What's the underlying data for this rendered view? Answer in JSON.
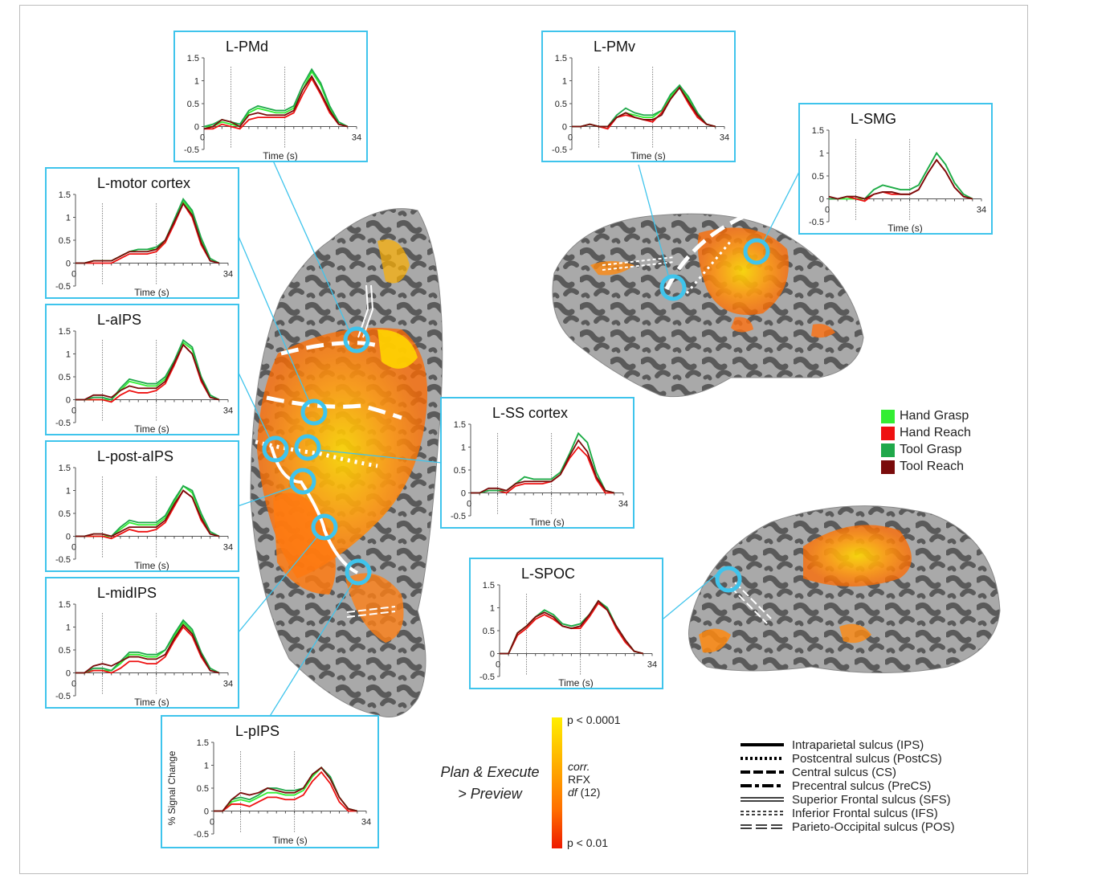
{
  "legend": [
    {
      "label": "Hand Grasp",
      "color": "#33ee33"
    },
    {
      "label": "Hand Reach",
      "color": "#ee1111"
    },
    {
      "label": "Tool Grasp",
      "color": "#1fa84a"
    },
    {
      "label": "Tool Reach",
      "color": "#7a0b0b"
    }
  ],
  "sulci": [
    {
      "label": "Intraparietal sulcus (IPS)",
      "style": "solid"
    },
    {
      "label": "Postcentral sulcus (PostCS)",
      "style": "dotted"
    },
    {
      "label": "Central sulcus (CS)",
      "style": "dashed"
    },
    {
      "label": "Precentral sulcus (PreCS)",
      "style": "dashdot"
    },
    {
      "label": "Superior Frontal sulcus (SFS)",
      "style": "double"
    },
    {
      "label": "Inferior Frontal sulcus (IFS)",
      "style": "double-dotted"
    },
    {
      "label": "Parieto-Occipital sulcus (POS)",
      "style": "double-dashed"
    }
  ],
  "colorbar": {
    "top_label": "p < 0.0001",
    "bottom_label": "p < 0.01",
    "stat_line1": "corr.",
    "stat_line2": "RFX",
    "stat_line3_italic": "df",
    "stat_line3_rest": " (12)",
    "colors": [
      "#ffee00",
      "#ffb000",
      "#ff7000",
      "#ee1a00"
    ]
  },
  "contrast_label": {
    "line1": "Plan & Execute",
    "line2": "> Preview"
  },
  "shared_axes": {
    "xlabel": "Time (s)",
    "ylabel": "% Signal Change",
    "yticks": [
      "1.5",
      "1",
      "0.5",
      "0",
      "-0.5"
    ],
    "xtick_start": "0",
    "xtick_end": "34",
    "ylim": [
      -0.5,
      1.5
    ],
    "xlim": [
      0,
      34
    ],
    "event_lines_x": [
      6,
      18
    ]
  },
  "chart_data": [
    {
      "type": "line",
      "title": "L-PMd",
      "x": [
        0,
        2,
        4,
        6,
        8,
        10,
        12,
        14,
        16,
        18,
        20,
        22,
        24,
        26,
        28,
        30,
        32
      ],
      "series": [
        {
          "name": "Hand Grasp",
          "values": [
            0.0,
            0.0,
            0.1,
            0.05,
            0.0,
            0.3,
            0.4,
            0.35,
            0.3,
            0.3,
            0.4,
            0.8,
            1.2,
            0.9,
            0.4,
            0.1,
            0.0
          ]
        },
        {
          "name": "Hand Reach",
          "values": [
            -0.05,
            -0.05,
            0.05,
            0.0,
            -0.05,
            0.15,
            0.2,
            0.2,
            0.2,
            0.2,
            0.3,
            0.7,
            1.05,
            0.7,
            0.3,
            0.05,
            0.0
          ]
        },
        {
          "name": "Tool Grasp",
          "values": [
            0.0,
            0.05,
            0.15,
            0.1,
            0.05,
            0.35,
            0.45,
            0.4,
            0.35,
            0.35,
            0.45,
            0.9,
            1.25,
            0.95,
            0.45,
            0.1,
            0.0
          ]
        },
        {
          "name": "Tool Reach",
          "values": [
            -0.05,
            0.0,
            0.15,
            0.1,
            0.0,
            0.25,
            0.3,
            0.25,
            0.25,
            0.25,
            0.35,
            0.8,
            1.1,
            0.75,
            0.35,
            0.05,
            0.0
          ]
        }
      ]
    },
    {
      "type": "line",
      "title": "L-PMv",
      "x": [
        0,
        2,
        4,
        6,
        8,
        10,
        12,
        14,
        16,
        18,
        20,
        22,
        24,
        26,
        28,
        30,
        32
      ],
      "series": [
        {
          "name": "Hand Grasp",
          "values": [
            0.0,
            0.0,
            0.05,
            0.0,
            0.0,
            0.2,
            0.3,
            0.25,
            0.2,
            0.2,
            0.35,
            0.65,
            0.9,
            0.6,
            0.25,
            0.05,
            0.0
          ]
        },
        {
          "name": "Hand Reach",
          "values": [
            0.0,
            0.0,
            0.05,
            0.0,
            -0.05,
            0.2,
            0.25,
            0.2,
            0.15,
            0.1,
            0.3,
            0.6,
            0.85,
            0.5,
            0.2,
            0.05,
            0.0
          ]
        },
        {
          "name": "Tool Grasp",
          "values": [
            0.0,
            0.0,
            0.05,
            0.0,
            0.0,
            0.25,
            0.4,
            0.3,
            0.25,
            0.25,
            0.35,
            0.7,
            0.9,
            0.65,
            0.3,
            0.05,
            0.0
          ]
        },
        {
          "name": "Tool Reach",
          "values": [
            0.0,
            0.0,
            0.05,
            0.0,
            0.0,
            0.2,
            0.3,
            0.2,
            0.15,
            0.15,
            0.25,
            0.6,
            0.85,
            0.55,
            0.25,
            0.05,
            0.0
          ]
        }
      ]
    },
    {
      "type": "line",
      "title": "L-SMG",
      "x": [
        0,
        2,
        4,
        6,
        8,
        10,
        12,
        14,
        16,
        18,
        20,
        22,
        24,
        26,
        28,
        30,
        32
      ],
      "series": [
        {
          "name": "Hand Grasp",
          "values": [
            0.0,
            0.0,
            0.0,
            0.0,
            0.0,
            0.2,
            0.3,
            0.25,
            0.2,
            0.2,
            0.3,
            0.65,
            1.0,
            0.75,
            0.35,
            0.1,
            0.0
          ]
        },
        {
          "name": "Hand Reach",
          "values": [
            0.0,
            0.0,
            0.05,
            0.0,
            -0.05,
            0.1,
            0.15,
            0.1,
            0.1,
            0.1,
            0.2,
            0.55,
            0.85,
            0.6,
            0.25,
            0.05,
            0.0
          ]
        },
        {
          "name": "Tool Grasp",
          "values": [
            0.0,
            0.0,
            0.05,
            0.05,
            0.0,
            0.2,
            0.3,
            0.25,
            0.2,
            0.2,
            0.3,
            0.65,
            1.0,
            0.75,
            0.35,
            0.1,
            0.0
          ]
        },
        {
          "name": "Tool Reach",
          "values": [
            0.05,
            0.0,
            0.05,
            0.05,
            0.0,
            0.1,
            0.15,
            0.15,
            0.1,
            0.1,
            0.2,
            0.55,
            0.85,
            0.6,
            0.25,
            0.05,
            0.0
          ]
        }
      ]
    },
    {
      "type": "line",
      "title": "L-motor cortex",
      "x": [
        0,
        2,
        4,
        6,
        8,
        10,
        12,
        14,
        16,
        18,
        20,
        22,
        24,
        26,
        28,
        30,
        32
      ],
      "series": [
        {
          "name": "Hand Grasp",
          "values": [
            0.0,
            0.0,
            0.05,
            0.05,
            0.05,
            0.15,
            0.25,
            0.3,
            0.3,
            0.3,
            0.45,
            0.9,
            1.35,
            1.1,
            0.5,
            0.1,
            0.0
          ]
        },
        {
          "name": "Hand Reach",
          "values": [
            0.0,
            0.0,
            0.0,
            0.0,
            0.0,
            0.1,
            0.2,
            0.2,
            0.2,
            0.25,
            0.45,
            0.85,
            1.3,
            1.0,
            0.4,
            0.05,
            0.0
          ]
        },
        {
          "name": "Tool Grasp",
          "values": [
            0.0,
            0.0,
            0.05,
            0.05,
            0.05,
            0.15,
            0.25,
            0.3,
            0.3,
            0.35,
            0.5,
            0.95,
            1.4,
            1.15,
            0.55,
            0.1,
            0.0
          ]
        },
        {
          "name": "Tool Reach",
          "values": [
            0.0,
            0.0,
            0.05,
            0.05,
            0.05,
            0.15,
            0.25,
            0.25,
            0.25,
            0.3,
            0.5,
            0.9,
            1.3,
            1.05,
            0.45,
            0.05,
            0.0
          ]
        }
      ]
    },
    {
      "type": "line",
      "title": "L-aIPS",
      "x": [
        0,
        2,
        4,
        6,
        8,
        10,
        12,
        14,
        16,
        18,
        20,
        22,
        24,
        26,
        28,
        30,
        32
      ],
      "series": [
        {
          "name": "Hand Grasp",
          "values": [
            0.0,
            0.0,
            0.0,
            0.0,
            0.0,
            0.2,
            0.4,
            0.35,
            0.3,
            0.3,
            0.45,
            0.8,
            1.25,
            1.1,
            0.5,
            0.1,
            0.0
          ]
        },
        {
          "name": "Hand Reach",
          "values": [
            0.0,
            0.0,
            0.0,
            0.0,
            -0.05,
            0.1,
            0.2,
            0.15,
            0.15,
            0.2,
            0.35,
            0.75,
            1.2,
            1.0,
            0.4,
            0.05,
            0.0
          ]
        },
        {
          "name": "Tool Grasp",
          "values": [
            0.0,
            0.0,
            0.05,
            0.05,
            0.0,
            0.25,
            0.45,
            0.4,
            0.35,
            0.35,
            0.5,
            0.85,
            1.3,
            1.15,
            0.5,
            0.1,
            0.0
          ]
        },
        {
          "name": "Tool Reach",
          "values": [
            0.0,
            0.0,
            0.1,
            0.1,
            0.05,
            0.2,
            0.3,
            0.25,
            0.25,
            0.25,
            0.4,
            0.8,
            1.2,
            1.0,
            0.45,
            0.05,
            0.0
          ]
        }
      ]
    },
    {
      "type": "line",
      "title": "L-post-aIPS",
      "x": [
        0,
        2,
        4,
        6,
        8,
        10,
        12,
        14,
        16,
        18,
        20,
        22,
        24,
        26,
        28,
        30,
        32
      ],
      "series": [
        {
          "name": "Hand Grasp",
          "values": [
            0.0,
            0.0,
            0.0,
            0.0,
            0.0,
            0.15,
            0.3,
            0.25,
            0.25,
            0.25,
            0.4,
            0.75,
            1.1,
            0.95,
            0.45,
            0.1,
            0.0
          ]
        },
        {
          "name": "Hand Reach",
          "values": [
            0.0,
            0.0,
            0.0,
            0.0,
            -0.05,
            0.05,
            0.15,
            0.1,
            0.1,
            0.15,
            0.3,
            0.65,
            1.0,
            0.85,
            0.35,
            0.05,
            0.0
          ]
        },
        {
          "name": "Tool Grasp",
          "values": [
            0.0,
            0.0,
            0.05,
            0.05,
            0.0,
            0.2,
            0.35,
            0.3,
            0.3,
            0.3,
            0.45,
            0.8,
            1.1,
            1.0,
            0.5,
            0.1,
            0.0
          ]
        },
        {
          "name": "Tool Reach",
          "values": [
            0.0,
            0.0,
            0.05,
            0.05,
            0.0,
            0.1,
            0.2,
            0.2,
            0.2,
            0.2,
            0.35,
            0.7,
            1.0,
            0.85,
            0.4,
            0.05,
            0.0
          ]
        }
      ]
    },
    {
      "type": "line",
      "title": "L-midIPS",
      "x": [
        0,
        2,
        4,
        6,
        8,
        10,
        12,
        14,
        16,
        18,
        20,
        22,
        24,
        26,
        28,
        30,
        32
      ],
      "series": [
        {
          "name": "Hand Grasp",
          "values": [
            0.0,
            0.0,
            0.05,
            0.05,
            0.05,
            0.2,
            0.4,
            0.4,
            0.35,
            0.35,
            0.5,
            0.8,
            1.1,
            0.9,
            0.4,
            0.1,
            0.0
          ]
        },
        {
          "name": "Hand Reach",
          "values": [
            0.0,
            0.0,
            0.05,
            0.05,
            0.0,
            0.1,
            0.25,
            0.25,
            0.2,
            0.2,
            0.35,
            0.7,
            1.0,
            0.8,
            0.35,
            0.05,
            0.0
          ]
        },
        {
          "name": "Tool Grasp",
          "values": [
            0.0,
            0.0,
            0.1,
            0.1,
            0.05,
            0.25,
            0.45,
            0.45,
            0.4,
            0.4,
            0.5,
            0.85,
            1.15,
            0.95,
            0.45,
            0.1,
            0.0
          ]
        },
        {
          "name": "Tool Reach",
          "values": [
            0.0,
            0.0,
            0.15,
            0.2,
            0.15,
            0.25,
            0.35,
            0.35,
            0.3,
            0.3,
            0.4,
            0.75,
            1.05,
            0.85,
            0.4,
            0.05,
            0.0
          ]
        }
      ]
    },
    {
      "type": "line",
      "title": "L-SS cortex",
      "x": [
        0,
        2,
        4,
        6,
        8,
        10,
        12,
        14,
        16,
        18,
        20,
        22,
        24,
        26,
        28,
        30,
        32
      ],
      "series": [
        {
          "name": "Hand Grasp",
          "values": [
            0.0,
            0.0,
            0.05,
            0.05,
            0.05,
            0.2,
            0.35,
            0.3,
            0.3,
            0.3,
            0.45,
            0.85,
            1.3,
            1.1,
            0.45,
            0.05,
            0.0
          ]
        },
        {
          "name": "Hand Reach",
          "values": [
            0.0,
            0.0,
            0.05,
            0.05,
            0.0,
            0.15,
            0.2,
            0.2,
            0.2,
            0.25,
            0.4,
            0.75,
            1.0,
            0.8,
            0.3,
            0.0,
            0.0
          ]
        },
        {
          "name": "Tool Grasp",
          "values": [
            0.0,
            0.0,
            0.05,
            0.05,
            0.05,
            0.2,
            0.35,
            0.3,
            0.3,
            0.3,
            0.45,
            0.85,
            1.3,
            1.1,
            0.45,
            0.05,
            0.0
          ]
        },
        {
          "name": "Tool Reach",
          "values": [
            0.0,
            0.0,
            0.1,
            0.1,
            0.05,
            0.2,
            0.25,
            0.25,
            0.25,
            0.25,
            0.4,
            0.8,
            1.15,
            0.9,
            0.35,
            0.05,
            0.0
          ]
        }
      ]
    },
    {
      "type": "line",
      "title": "L-SPOC",
      "x": [
        0,
        2,
        4,
        6,
        8,
        10,
        12,
        14,
        16,
        18,
        20,
        22,
        24,
        26,
        28,
        30,
        32
      ],
      "series": [
        {
          "name": "Hand Grasp",
          "values": [
            0.0,
            0.0,
            0.45,
            0.6,
            0.8,
            0.95,
            0.85,
            0.65,
            0.6,
            0.65,
            0.85,
            1.15,
            1.0,
            0.6,
            0.3,
            0.05,
            0.0
          ]
        },
        {
          "name": "Hand Reach",
          "values": [
            0.0,
            0.0,
            0.4,
            0.55,
            0.75,
            0.85,
            0.75,
            0.6,
            0.55,
            0.55,
            0.8,
            1.1,
            0.95,
            0.55,
            0.25,
            0.05,
            0.0
          ]
        },
        {
          "name": "Tool Grasp",
          "values": [
            0.0,
            0.0,
            0.45,
            0.6,
            0.8,
            0.95,
            0.85,
            0.65,
            0.6,
            0.65,
            0.85,
            1.15,
            1.0,
            0.6,
            0.3,
            0.05,
            0.0
          ]
        },
        {
          "name": "Tool Reach",
          "values": [
            0.0,
            0.0,
            0.45,
            0.6,
            0.8,
            0.9,
            0.8,
            0.6,
            0.55,
            0.6,
            0.85,
            1.15,
            0.95,
            0.6,
            0.3,
            0.05,
            0.0
          ]
        }
      ]
    },
    {
      "type": "line",
      "title": "L-pIPS",
      "x": [
        0,
        2,
        4,
        6,
        8,
        10,
        12,
        14,
        16,
        18,
        20,
        22,
        24,
        26,
        28,
        30,
        32
      ],
      "series": [
        {
          "name": "Hand Grasp",
          "values": [
            0.0,
            0.0,
            0.2,
            0.25,
            0.2,
            0.3,
            0.4,
            0.4,
            0.35,
            0.35,
            0.45,
            0.75,
            0.95,
            0.7,
            0.3,
            0.05,
            0.0
          ]
        },
        {
          "name": "Hand Reach",
          "values": [
            0.0,
            0.0,
            0.15,
            0.15,
            0.1,
            0.2,
            0.3,
            0.3,
            0.25,
            0.25,
            0.35,
            0.65,
            0.85,
            0.6,
            0.2,
            0.0,
            0.0
          ]
        },
        {
          "name": "Tool Grasp",
          "values": [
            0.0,
            0.0,
            0.25,
            0.3,
            0.25,
            0.35,
            0.5,
            0.5,
            0.45,
            0.45,
            0.5,
            0.8,
            0.95,
            0.75,
            0.3,
            0.05,
            0.0
          ]
        },
        {
          "name": "Tool Reach",
          "values": [
            0.0,
            0.0,
            0.25,
            0.4,
            0.35,
            0.4,
            0.5,
            0.45,
            0.4,
            0.4,
            0.5,
            0.8,
            0.95,
            0.7,
            0.3,
            0.05,
            0.0
          ]
        }
      ]
    }
  ]
}
